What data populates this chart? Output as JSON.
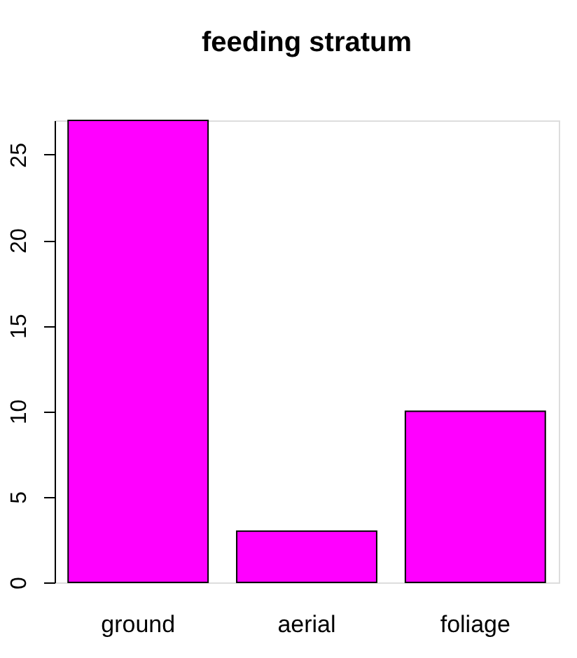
{
  "chart_data": {
    "type": "bar",
    "title": "feeding stratum",
    "categories": [
      "ground",
      "aerial",
      "foliage"
    ],
    "values": [
      27,
      3,
      10
    ],
    "color": "#ff00ff",
    "ylim": [
      0,
      27
    ],
    "yticks": [
      0,
      5,
      10,
      15,
      20,
      25
    ],
    "grid": false
  }
}
